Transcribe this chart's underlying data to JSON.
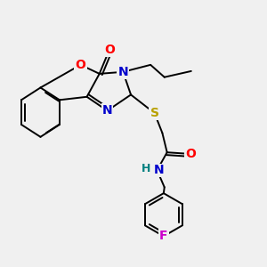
{
  "bg_color": "#f0f0f0",
  "bond_color": "#000000",
  "bond_width": 1.4,
  "atom_colors": {
    "O": "#ff0000",
    "N": "#0000cc",
    "S": "#b8a000",
    "F": "#cc00cc",
    "H": "#008080",
    "C": "#000000"
  },
  "font_size": 9
}
